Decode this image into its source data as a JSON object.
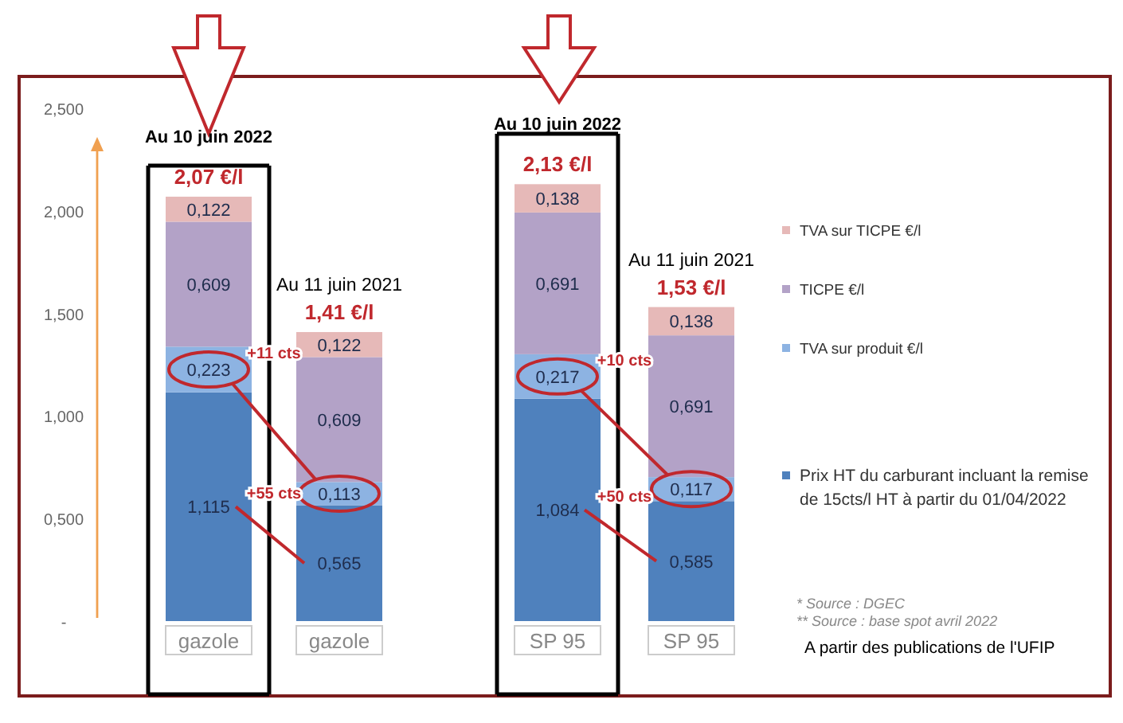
{
  "chart_data": {
    "type": "bar",
    "stacked": true,
    "categories": [
      "gazole",
      "gazole",
      "SP 95",
      "SP 95"
    ],
    "series": [
      {
        "name": "Prix HT du carburant incluant la remise de 15cts/l HT à partir du 01/04/2022",
        "color": "#4f81bd",
        "values": [
          1.115,
          0.565,
          1.084,
          0.585
        ],
        "value_labels": [
          "1,115",
          "0,565",
          "1,084",
          "0,585"
        ]
      },
      {
        "name": "TVA sur produit €/l",
        "color": "#8db3e2",
        "values": [
          0.223,
          0.113,
          0.217,
          0.117
        ],
        "value_labels": [
          "0,223",
          "0,113",
          "0,217",
          "0,117"
        ]
      },
      {
        "name": "TICPE €/l",
        "color": "#b3a2c7",
        "values": [
          0.609,
          0.609,
          0.691,
          0.691
        ],
        "value_labels": [
          "0,609",
          "0,609",
          "0,691",
          "0,691"
        ]
      },
      {
        "name": "TVA sur TICPE €/l",
        "color": "#e6b9b8",
        "values": [
          0.122,
          0.122,
          0.138,
          0.138
        ],
        "value_labels": [
          "0,122",
          "0,122",
          "0,138",
          "0,138"
        ]
      }
    ],
    "ylim": [
      0,
      2.5
    ],
    "yticks": [
      {
        "value": 0,
        "label": "-"
      },
      {
        "value": 0.5,
        "label": "0,500"
      },
      {
        "value": 1,
        "label": "1,000"
      },
      {
        "value": 1.5,
        "label": "1,500"
      },
      {
        "value": 2,
        "label": "2,000"
      },
      {
        "value": 2.5,
        "label": "2,500"
      }
    ],
    "totals": [
      "2,07 €/l",
      "1,41 €/l",
      "2,13 €/l",
      "1,53 €/l"
    ],
    "legend": "right",
    "annotations": [
      "Au 10 juin 2022",
      "Au 11 juin 2021",
      "Au 10 juin 2022",
      "Au 11 juin 2021",
      "+55 cts",
      "+11 cts",
      "+50 cts",
      "+10 cts",
      "* Source : DGEC",
      "** Source : base spot avril 2022",
      "A partir des publications de l'UFIP"
    ]
  }
}
